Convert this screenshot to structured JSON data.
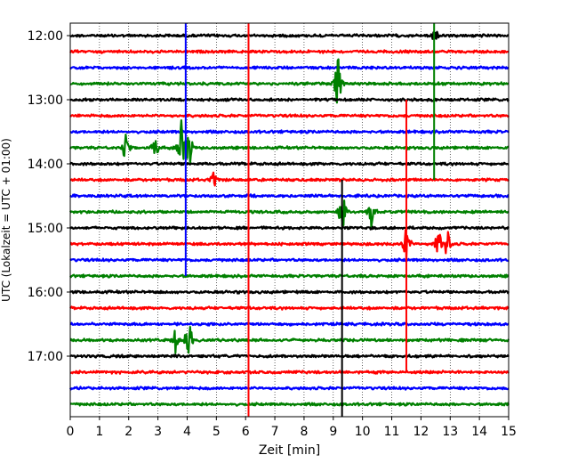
{
  "chart_data": {
    "type": "line",
    "title": "",
    "xlabel": "Zeit  [min]",
    "ylabel": "UTC (Lokalzeit = UTC + 01:00)",
    "xlim": [
      0,
      15
    ],
    "x_ticks": [
      "0",
      "1",
      "2",
      "3",
      "4",
      "5",
      "6",
      "7",
      "8",
      "9",
      "10",
      "11",
      "12",
      "13",
      "14",
      "15"
    ],
    "y_ticks": [
      "12:00",
      "13:00",
      "14:00",
      "15:00",
      "16:00",
      "17:00"
    ],
    "grid": "vertical dotted lines at each minute",
    "trace_interval_minutes": 15,
    "first_trace": "12:00",
    "trace_count": 24,
    "color_cycle": [
      "#000000",
      "#ff0000",
      "#0000ff",
      "#008000"
    ],
    "events": [
      {
        "trace": "12:00",
        "minute": 12.45,
        "amplitude": 1.0
      },
      {
        "trace": "12:45",
        "minute": 9.15,
        "amplitude": 2.5
      },
      {
        "trace": "13:45",
        "minute": 1.9,
        "amplitude": 1.3
      },
      {
        "trace": "13:45",
        "minute": 2.9,
        "amplitude": 1.2
      },
      {
        "trace": "13:45",
        "minute": 3.8,
        "amplitude": 2.0
      },
      {
        "trace": "13:45",
        "minute": 4.05,
        "amplitude": 2.2
      },
      {
        "trace": "14:15",
        "minute": 4.9,
        "amplitude": 0.8
      },
      {
        "trace": "14:45",
        "minute": 9.3,
        "amplitude": 2.5
      },
      {
        "trace": "14:45",
        "minute": 10.3,
        "amplitude": 1.2
      },
      {
        "trace": "15:15",
        "minute": 11.5,
        "amplitude": 2.0
      },
      {
        "trace": "15:15",
        "minute": 12.6,
        "amplitude": 1.5
      },
      {
        "trace": "15:15",
        "minute": 12.9,
        "amplitude": 1.5
      },
      {
        "trace": "16:45",
        "minute": 3.6,
        "amplitude": 1.0
      },
      {
        "trace": "16:45",
        "minute": 4.05,
        "amplitude": 1.8
      }
    ],
    "vertical_spikes": [
      {
        "minute": 3.95,
        "from": "12:00",
        "to": "15:45",
        "color": "#0000ff"
      },
      {
        "minute": 6.1,
        "from": "12:00",
        "to": "18:00",
        "color": "#ff0000"
      },
      {
        "minute": 9.3,
        "from": "14:30",
        "to": "18:00",
        "color": "#000000"
      },
      {
        "minute": 11.5,
        "from": "13:15",
        "to": "17:15",
        "color": "#ff0000"
      },
      {
        "minute": 12.45,
        "from": "12:00",
        "to": "14:15",
        "color": "#008000"
      }
    ]
  }
}
